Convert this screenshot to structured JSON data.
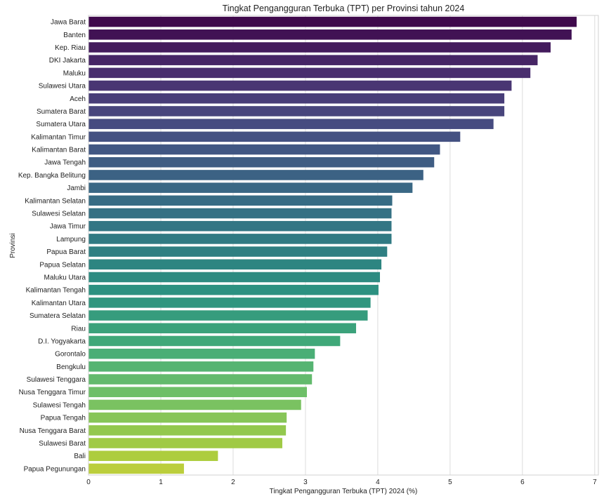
{
  "chart_data": {
    "type": "bar",
    "orientation": "horizontal",
    "title": "Tingkat Pengangguran Terbuka (TPT) per Provinsi tahun 2024",
    "xlabel": "Tingkat Pengangguran Terbuka (TPT) 2024 (%)",
    "ylabel": "Provinsi",
    "xlim": [
      0,
      7.05
    ],
    "xticks": [
      "0",
      "1",
      "2",
      "3",
      "4",
      "5",
      "6",
      "7"
    ],
    "grid": "vertical",
    "palette": "viridis",
    "categories": [
      "Jawa Barat",
      "Banten",
      "Kep. Riau",
      "DKI Jakarta",
      "Maluku",
      "Sulawesi Utara",
      "Aceh",
      "Sumatera Barat",
      "Sumatera Utara",
      "Kalimantan Timur",
      "Kalimantan Barat",
      "Jawa Tengah",
      "Kep. Bangka Belitung",
      "Jambi",
      "Kalimantan Selatan",
      "Sulawesi Selatan",
      "Jawa Timur",
      "Lampung",
      "Papua Barat",
      "Papua Selatan",
      "Maluku Utara",
      "Kalimantan Tengah",
      "Kalimantan Utara",
      "Sumatera Selatan",
      "Riau",
      "D.I. Yogyakarta",
      "Gorontalo",
      "Bengkulu",
      "Sulawesi Tenggara",
      "Nusa Tenggara Timur",
      "Sulawesi Tengah",
      "Papua Tengah",
      "Nusa Tenggara Barat",
      "Sulawesi Barat",
      "Bali",
      "Papua Pegunungan"
    ],
    "values": [
      6.75,
      6.68,
      6.39,
      6.21,
      6.11,
      5.85,
      5.75,
      5.75,
      5.6,
      5.14,
      4.86,
      4.78,
      4.63,
      4.48,
      4.2,
      4.19,
      4.19,
      4.19,
      4.13,
      4.05,
      4.03,
      4.01,
      3.9,
      3.86,
      3.7,
      3.48,
      3.13,
      3.11,
      3.09,
      3.02,
      2.94,
      2.74,
      2.73,
      2.68,
      1.79,
      1.32
    ]
  }
}
